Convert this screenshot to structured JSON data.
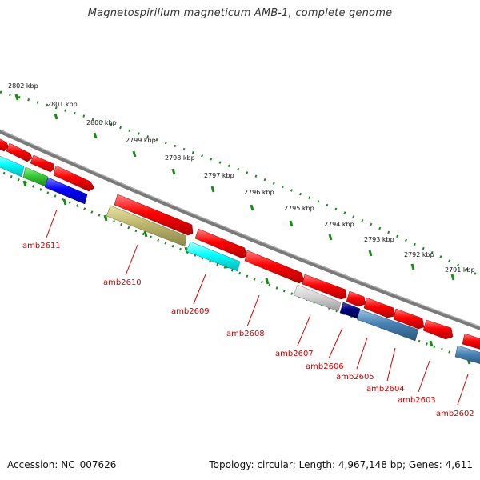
{
  "title": "Magnetospirillum magneticum AMB-1, complete genome",
  "accession_text": "Accession: NC_007626",
  "topology_text": "Topology: circular; Length: 4,967,148 bp; Genes: 4,611",
  "kbp_labels": [
    "2802 kbp",
    "2801 kbp",
    "2800 kbp",
    "2799 kbp",
    "2798 kbp",
    "2797 kbp",
    "2796 kbp",
    "2795 kbp",
    "2794 kbp",
    "2793 kbp",
    "2792 kbp",
    "2791 kbp"
  ],
  "gene_labels": [
    "amb2611",
    "amb2610",
    "amb2609",
    "amb2608",
    "amb2607",
    "amb2606",
    "amb2605",
    "amb2604",
    "amb2603",
    "amb2602"
  ],
  "colors": {
    "forward_gene": "#ff0000",
    "tick_green": "#1a8a1a",
    "backbone": "#7a7a7a",
    "label_red": "#cc0000",
    "cyan": "#00ffff",
    "green": "#33cc33",
    "blue": "#0000ff",
    "khaki": "#bdb76b",
    "light_gray": "#d3d3d3",
    "navy": "#000080",
    "steel_blue": "#4682b4"
  }
}
